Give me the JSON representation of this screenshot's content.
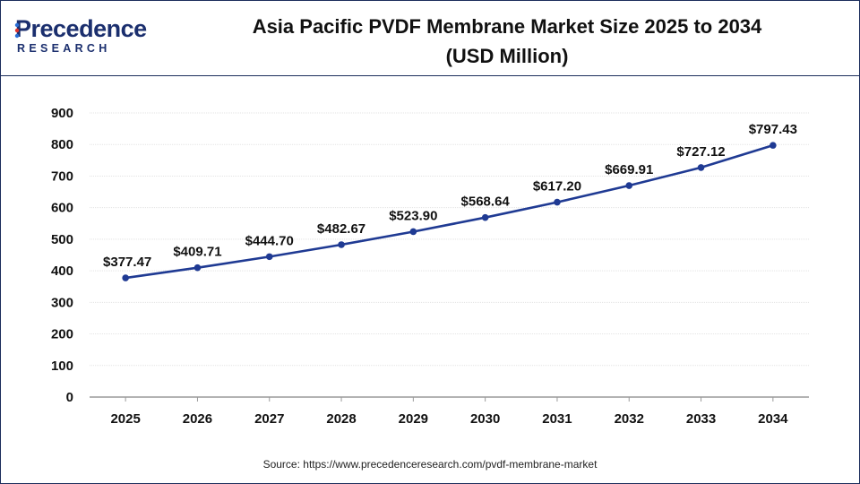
{
  "brand": {
    "name_word": "recedence",
    "name_initial": "P",
    "name_sub": "RESEARCH",
    "colors": {
      "navy": "#1b2f6e",
      "dot_blue": "#2a6fd6",
      "dot_red": "#e0322d"
    }
  },
  "title_line1": "Asia Pacific PVDF Membrane Market Size 2025 to 2034",
  "title_line2": "(USD Million)",
  "source": "Source: https://www.precedenceresearch.com/pvdf-membrane-market",
  "chart_data": {
    "type": "line",
    "categories": [
      "2025",
      "2026",
      "2027",
      "2028",
      "2029",
      "2030",
      "2031",
      "2032",
      "2033",
      "2034"
    ],
    "series": [
      {
        "values": [
          377.47,
          409.71,
          444.7,
          482.67,
          523.9,
          568.64,
          617.2,
          669.91,
          727.12,
          797.43
        ],
        "labels": [
          "$377.47",
          "$409.71",
          "$444.70",
          "$482.67",
          "$523.90",
          "$568.64",
          "$617.20",
          "$669.91",
          "$727.12",
          "$797.43"
        ],
        "color": "#1f3a93"
      }
    ],
    "yticks": [
      "0",
      "100",
      "200",
      "300",
      "400",
      "500",
      "600",
      "700",
      "800",
      "900"
    ],
    "ylim": [
      0,
      900
    ],
    "grid": true,
    "legend": "none"
  }
}
